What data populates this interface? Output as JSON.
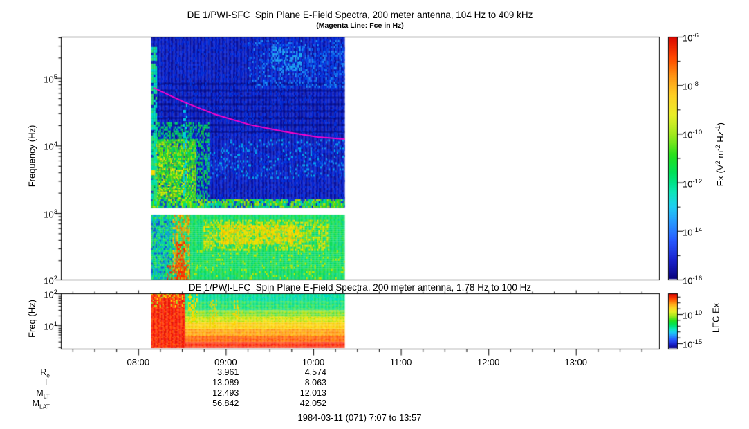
{
  "figure": {
    "date_label": "1984-03-11 (071) 7:07 to 13:57",
    "x_axis": {
      "start_hhmm": "7:07",
      "end_hhmm": "13:57",
      "start_hours": 7.1167,
      "end_hours": 13.95,
      "tick_hours": [
        8,
        9,
        10,
        11,
        12,
        13
      ],
      "tick_labels": [
        "08:00",
        "09:00",
        "10:00",
        "11:00",
        "12:00",
        "13:00"
      ],
      "minor_step_hours": 0.25
    },
    "data_hours_span": [
      8.15,
      10.36
    ]
  },
  "chart_data": [
    {
      "type": "heatmap",
      "panel": "SFC",
      "title": "DE 1/PWI-SFC  Spin Plane E-Field Spectra, 200 meter antenna, 104 Hz to 409 kHz",
      "subtitle": "(Magenta Line: Fce in Hz)",
      "ylabel": "Frequency (Hz)",
      "yrange_hz": [
        104,
        409000
      ],
      "ytick_exps": [
        5,
        4,
        3,
        2
      ],
      "fce_line": {
        "color": "#ff00cc",
        "points_hours_hz": [
          [
            8.175,
            71600
          ],
          [
            8.53,
            43600
          ],
          [
            8.87,
            29200
          ],
          [
            9.27,
            20400
          ],
          [
            9.66,
            16200
          ],
          [
            10.05,
            13400
          ],
          [
            10.36,
            12500
          ]
        ]
      },
      "colorbar": {
        "label_segments": [
          [
            "t",
            "Ex (V"
          ],
          [
            "sup",
            "2"
          ],
          [
            "t",
            " m"
          ],
          [
            "sup",
            "-2"
          ],
          [
            "t",
            " Hz"
          ],
          [
            "sup",
            "-1"
          ],
          [
            "t",
            ")"
          ]
        ],
        "exp_range": [
          -6,
          -16
        ],
        "exp_major": [
          -6,
          -8,
          -10,
          -12,
          -14,
          -16
        ],
        "stops": [
          [
            0,
            "#08007a"
          ],
          [
            0.08,
            "#000ac8"
          ],
          [
            0.16,
            "#003cff"
          ],
          [
            0.24,
            "#008cff"
          ],
          [
            0.3,
            "#00c8f0"
          ],
          [
            0.36,
            "#00e6b4"
          ],
          [
            0.44,
            "#00e15a"
          ],
          [
            0.52,
            "#28e114"
          ],
          [
            0.6,
            "#96e600"
          ],
          [
            0.68,
            "#e6eb00"
          ],
          [
            0.76,
            "#ffc800"
          ],
          [
            0.84,
            "#ff8c00"
          ],
          [
            0.92,
            "#ff4600"
          ],
          [
            1,
            "#dc0a00"
          ]
        ]
      },
      "bands": [
        {
          "freq_hz": [
            1200,
            409000
          ],
          "layers": [
            {
              "kind": "cells",
              "rect": [
                0,
                0,
                1,
                1
              ],
              "colors": [
                "#000a9b",
                "#0011b0",
                "#0018c4",
                "#001fd4"
              ],
              "density": 1,
              "cell": [
                2,
                3
              ]
            },
            {
              "kind": "hlines",
              "h": 3,
              "alpha": 0.5,
              "color": "#000670",
              "lines": [
                0.27,
                0.31,
                0.35,
                0.39,
                0.43,
                0.47,
                0.51,
                0.55
              ]
            },
            {
              "kind": "cells",
              "rect": [
                0,
                0,
                1,
                1
              ],
              "colors": [
                "#0032dc",
                "#0028d2"
              ],
              "density": 0.12,
              "cell": [
                2,
                3
              ]
            },
            {
              "kind": "cells",
              "rect": [
                0.5,
                0.02,
                1,
                0.3
              ],
              "colors": [
                "#0046e6",
                "#0a69f0",
                "#1e8cf5"
              ],
              "density": 0.3,
              "cell": [
                2,
                3
              ]
            },
            {
              "kind": "cells",
              "rect": [
                0.62,
                0.06,
                0.78,
                0.2
              ],
              "colors": [
                "#28a0f8",
                "#19b4f0"
              ],
              "density": 0.35,
              "cell": [
                2,
                3
              ]
            },
            {
              "kind": "cells",
              "rect": [
                0.28,
                0.6,
                1,
                0.83
              ],
              "colors": [
                "#0a57e8",
                "#1791f0",
                "#00b4f0"
              ],
              "density": 0.16,
              "cell": [
                2,
                3
              ]
            },
            {
              "kind": "cells",
              "rect": [
                0,
                0.5,
                0.3,
                1
              ],
              "colors": [
                "#00c896",
                "#00d864",
                "#13d13b"
              ],
              "density": 0.45,
              "cell": [
                2,
                3
              ]
            },
            {
              "kind": "cells",
              "rect": [
                0.01,
                0.6,
                0.23,
                0.98
              ],
              "colors": [
                "#32dd1e",
                "#7fe800",
                "#b4ec00",
                "#00e050"
              ],
              "density": 0.85,
              "cell": [
                2,
                3
              ]
            },
            {
              "kind": "cells",
              "rect": [
                0.02,
                0.68,
                0.19,
                0.95
              ],
              "colors": [
                "#d8f000",
                "#ffe400"
              ],
              "density": 0.15,
              "cell": [
                2,
                2
              ]
            },
            {
              "kind": "cells",
              "rect": [
                0,
                0.06,
                0.03,
                0.98
              ],
              "colors": [
                "#00e3a5",
                "#00dcc8",
                "#2ce06e"
              ],
              "density": 0.8,
              "cell": [
                3,
                4
              ]
            },
            {
              "kind": "cells",
              "rect": [
                0,
                0.78,
                0.02,
                0.81
              ],
              "colors": [
                "#ffd700"
              ],
              "density": 1,
              "cell": [
                5,
                7
              ]
            },
            {
              "kind": "cells",
              "rect": [
                0.165,
                0.38,
                0.185,
                1
              ],
              "colors": [
                "#00c8e8",
                "#00e0d2"
              ],
              "density": 0.3,
              "cell": [
                2,
                4
              ]
            },
            {
              "kind": "cells",
              "rect": [
                0,
                0.95,
                1,
                1
              ],
              "colors": [
                "#00e064",
                "#49e80b",
                "#b4e800",
                "#00dcb4",
                "#0a46d2"
              ],
              "density": 0.95,
              "cell": [
                2,
                3
              ]
            }
          ]
        },
        {
          "freq_hz": [
            104,
            950
          ],
          "layers": [
            {
              "kind": "cells",
              "rect": [
                0,
                0,
                1,
                1
              ],
              "colors": [
                "#00dc55",
                "#0fe06e",
                "#00d27d",
                "#23dc41"
              ],
              "density": 1,
              "cell": [
                2,
                3
              ]
            },
            {
              "kind": "cells",
              "rect": [
                0,
                0,
                0.13,
                1
              ],
              "colors": [
                "#00b4d2",
                "#0f8ce0",
                "#00c8b4"
              ],
              "density": 0.4,
              "cell": [
                2,
                3
              ]
            },
            {
              "kind": "cells",
              "rect": [
                0,
                0.1,
                0.11,
                0.9
              ],
              "colors": [
                "#1050d8"
              ],
              "density": 0.12,
              "cell": [
                2,
                3
              ]
            },
            {
              "kind": "cells",
              "rect": [
                0.27,
                0.08,
                0.92,
                0.56
              ],
              "colors": [
                "#aadc00",
                "#d2e600",
                "#ffe100"
              ],
              "density": 0.5,
              "cell": [
                2,
                3
              ]
            },
            {
              "kind": "cells",
              "rect": [
                0.36,
                0.16,
                0.78,
                0.46
              ],
              "colors": [
                "#ffdc00",
                "#ffc300",
                "#f0e000"
              ],
              "density": 0.65,
              "cell": [
                2,
                3
              ]
            },
            {
              "kind": "cells",
              "rect": [
                0.11,
                0,
                0.2,
                1
              ],
              "colors": [
                "#ff9b00",
                "#ff6e00",
                "#ffc800"
              ],
              "density": 0.5,
              "cell": [
                2,
                3
              ]
            },
            {
              "kind": "cells",
              "rect": [
                0.125,
                0.42,
                0.175,
                1
              ],
              "colors": [
                "#ff3c00",
                "#ff1e00"
              ],
              "density": 0.5,
              "cell": [
                2,
                3
              ]
            },
            {
              "kind": "cells",
              "rect": [
                0.08,
                0.78,
                0.2,
                1
              ],
              "colors": [
                "#ff2a00",
                "#ff5a00"
              ],
              "density": 0.35,
              "cell": [
                2,
                3
              ]
            },
            {
              "kind": "cells",
              "rect": [
                0.2,
                0.55,
                1,
                1
              ],
              "colors": [
                "#b9e600"
              ],
              "density": 0.08,
              "cell": [
                2,
                3
              ]
            }
          ]
        }
      ]
    },
    {
      "type": "heatmap",
      "panel": "LFC",
      "title": "DE 1/PWI-LFC  Spin Plane E-Field Spectra, 200 meter antenna, 1.78 Hz to 100 Hz",
      "ylabel": "Freq (Hz)",
      "yrange_hz": [
        1.78,
        100
      ],
      "ytick_exps": [
        2,
        1
      ],
      "colorbar": {
        "label": "LFC Ex",
        "exp_ticks": [
          -7,
          -8,
          -9,
          -10,
          -11,
          -12,
          -13,
          -14,
          -15
        ],
        "exp_major": [
          -10,
          -15
        ]
      },
      "bands": [
        {
          "freq_hz": [
            1.78,
            100
          ],
          "layers": [
            {
              "kind": "rows",
              "fx": [
                0.175,
                1
              ],
              "cell": [
                2,
                2
              ],
              "rows": [
                {
                  "fy": [
                    0,
                    0.13
                  ],
                  "colors": [
                    "#00e0a0",
                    "#00e378",
                    "#19dc8c",
                    "#00d7b9"
                  ]
                },
                {
                  "fy": [
                    0.13,
                    0.3
                  ],
                  "colors": [
                    "#0ce273",
                    "#3ce34f",
                    "#00dc8c"
                  ]
                },
                {
                  "fy": [
                    0.3,
                    0.42
                  ],
                  "colors": [
                    "#7ce22a",
                    "#a5e106",
                    "#4fe03c"
                  ]
                },
                {
                  "fy": [
                    0.42,
                    0.53
                  ],
                  "colors": [
                    "#d2e600",
                    "#f5e000",
                    "#aae000"
                  ]
                },
                {
                  "fy": [
                    0.53,
                    0.65
                  ],
                  "colors": [
                    "#ffd800",
                    "#ffbe00",
                    "#f0cf00"
                  ]
                },
                {
                  "fy": [
                    0.65,
                    0.78
                  ],
                  "colors": [
                    "#ffa000",
                    "#ff8700",
                    "#ffb400"
                  ]
                },
                {
                  "fy": [
                    0.78,
                    0.89
                  ],
                  "colors": [
                    "#ff6400",
                    "#ff4b00",
                    "#ff7800"
                  ]
                },
                {
                  "fy": [
                    0.89,
                    1
                  ],
                  "colors": [
                    "#ff2300",
                    "#f51400",
                    "#ff3c00"
                  ]
                }
              ]
            },
            {
              "kind": "cells",
              "rect": [
                0,
                0,
                0.175,
                1
              ],
              "colors": [
                "#fa1400",
                "#ff2d00",
                "#e60f00",
                "#ff4600"
              ],
              "density": 1,
              "cell": [
                2,
                2
              ]
            },
            {
              "kind": "cells",
              "rect": [
                0,
                0,
                0.175,
                0.25
              ],
              "colors": [
                "#ffaa00",
                "#ffe000",
                "#96e632"
              ],
              "density": 0.25,
              "cell": [
                2,
                2
              ]
            },
            {
              "kind": "cells",
              "rect": [
                0.19,
                0,
                0.24,
                0.55
              ],
              "colors": [
                "#ffd800",
                "#c8e600"
              ],
              "density": 0.3,
              "cell": [
                2,
                3
              ]
            },
            {
              "kind": "cells",
              "rect": [
                0.3,
                0.1,
                0.34,
                0.62
              ],
              "colors": [
                "#ffc800",
                "#e6dc00"
              ],
              "density": 0.3,
              "cell": [
                2,
                3
              ]
            },
            {
              "kind": "cells",
              "rect": [
                0.42,
                0.12,
                0.455,
                0.6
              ],
              "colors": [
                "#ffd200"
              ],
              "density": 0.25,
              "cell": [
                2,
                3
              ]
            },
            {
              "kind": "cells",
              "rect": [
                0.45,
                0,
                1,
                0.12
              ],
              "colors": [
                "#00dcc8",
                "#19e6b4"
              ],
              "density": 0.25,
              "cell": [
                2,
                2
              ]
            }
          ]
        }
      ]
    }
  ],
  "ephemeris": {
    "rows": [
      {
        "label_segments": [
          [
            "t",
            "R"
          ],
          [
            "sub",
            "e"
          ]
        ],
        "values": [
          "3.961",
          "4.574"
        ]
      },
      {
        "label_segments": [
          [
            "t",
            "L"
          ]
        ],
        "values": [
          "13.089",
          "8.063"
        ]
      },
      {
        "label_segments": [
          [
            "t",
            "M"
          ],
          [
            "sub",
            "LT"
          ]
        ],
        "values": [
          "12.493",
          "12.013"
        ]
      },
      {
        "label_segments": [
          [
            "t",
            "M"
          ],
          [
            "sub",
            "LAT"
          ]
        ],
        "values": [
          "56.842",
          "42.052"
        ]
      }
    ],
    "column_hours": [
      9,
      10
    ]
  }
}
